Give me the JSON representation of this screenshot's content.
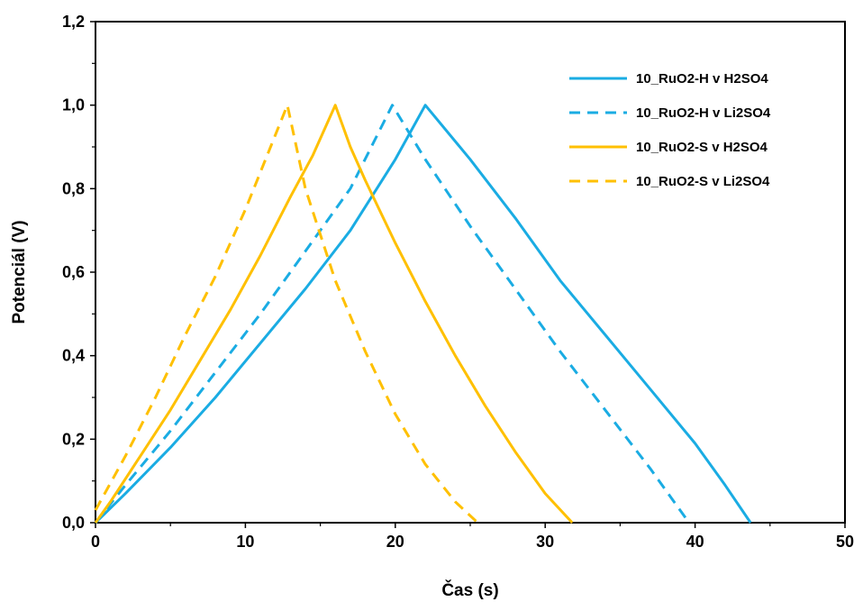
{
  "chart_data": {
    "type": "line",
    "xlabel": "Čas (s)",
    "ylabel": "Potenciál (V)",
    "xlim": [
      0,
      50
    ],
    "ylim": [
      0,
      1.2
    ],
    "xticks": [
      0,
      10,
      20,
      30,
      40,
      50
    ],
    "yticks": [
      0,
      0.2,
      0.4,
      0.6,
      0.8,
      1.0,
      1.2
    ],
    "xtick_labels": [
      "0",
      "10",
      "20",
      "30",
      "40",
      "50"
    ],
    "ytick_labels": [
      "0,0",
      "0,2",
      "0,4",
      "0,6",
      "0,8",
      "1,0",
      "1,2"
    ],
    "grid": false,
    "legend_position": "top-right",
    "series": [
      {
        "name": "10_RuO2-H v H2SO4",
        "color": "#1AACE3",
        "style": "solid",
        "x": [
          0,
          2,
          5,
          8,
          11,
          14,
          17,
          20,
          22,
          25,
          28,
          31,
          34,
          37,
          40,
          42,
          43.7
        ],
        "y": [
          0,
          0.07,
          0.18,
          0.3,
          0.43,
          0.56,
          0.7,
          0.87,
          1.0,
          0.87,
          0.73,
          0.58,
          0.45,
          0.32,
          0.19,
          0.09,
          0
        ]
      },
      {
        "name": "10_RuO2-H v Li2SO4",
        "color": "#1AACE3",
        "style": "dashed",
        "x": [
          0,
          2,
          5,
          8,
          11,
          14,
          17,
          19.8,
          22,
          25,
          28,
          31,
          34,
          37,
          39.6
        ],
        "y": [
          0,
          0.09,
          0.22,
          0.36,
          0.5,
          0.65,
          0.8,
          1.0,
          0.87,
          0.71,
          0.56,
          0.41,
          0.27,
          0.13,
          0
        ]
      },
      {
        "name": "10_RuO2-S v H2SO4",
        "color": "#FFC000",
        "style": "solid",
        "x": [
          0,
          1,
          3,
          5,
          7,
          9,
          11,
          13,
          14.5,
          16,
          17,
          18,
          20,
          22,
          24,
          26,
          28,
          30,
          31.8
        ],
        "y": [
          0,
          0.05,
          0.16,
          0.27,
          0.39,
          0.51,
          0.64,
          0.78,
          0.88,
          1.0,
          0.9,
          0.82,
          0.67,
          0.53,
          0.4,
          0.28,
          0.17,
          0.07,
          0
        ]
      },
      {
        "name": "10_RuO2-S v Li2SO4",
        "color": "#FFC000",
        "style": "dashed",
        "x": [
          0,
          2,
          4,
          6,
          8,
          10,
          12.8,
          14,
          16,
          18,
          20,
          22,
          24,
          25.5
        ],
        "y": [
          0.03,
          0.16,
          0.3,
          0.45,
          0.59,
          0.75,
          1.0,
          0.8,
          0.58,
          0.41,
          0.26,
          0.14,
          0.05,
          0
        ]
      }
    ]
  }
}
